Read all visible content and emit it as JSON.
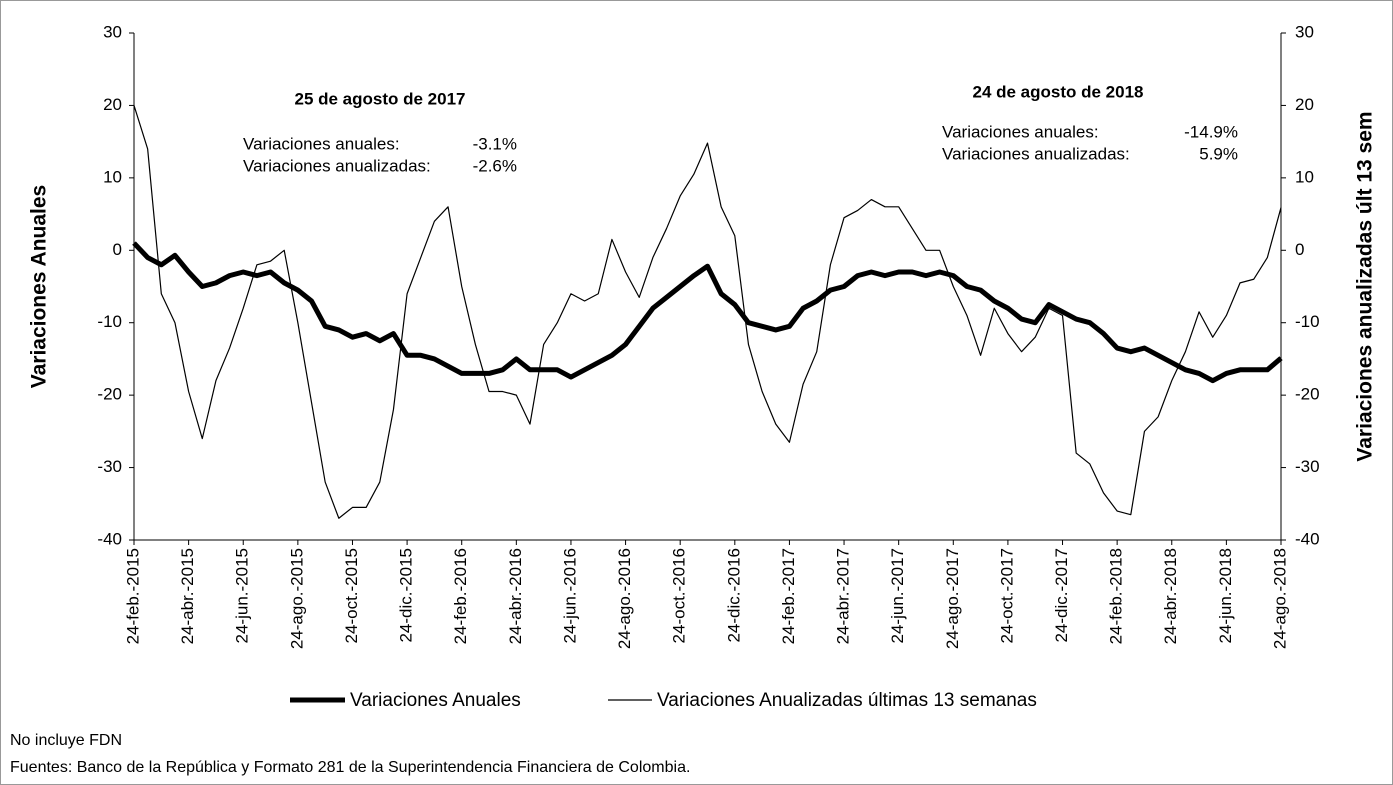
{
  "chart_data": {
    "type": "line",
    "categories": [
      "24-feb.-2015",
      null,
      null,
      null,
      "24-abr.-2015",
      null,
      null,
      null,
      "24-jun.-2015",
      null,
      null,
      null,
      "24-ago.-2015",
      null,
      null,
      null,
      "24-oct.-2015",
      null,
      null,
      null,
      "24-dic.-2015",
      null,
      null,
      null,
      "24-feb.-2016",
      null,
      null,
      null,
      "24-abr.-2016",
      null,
      null,
      null,
      "24-jun.-2016",
      null,
      null,
      null,
      "24-ago.-2016",
      null,
      null,
      null,
      "24-oct.-2016",
      null,
      null,
      null,
      "24-dic.-2016",
      null,
      null,
      null,
      "24-feb.-2017",
      null,
      null,
      null,
      "24-abr.-2017",
      null,
      null,
      null,
      "24-jun.-2017",
      null,
      null,
      null,
      "24-ago.-2017",
      null,
      null,
      null,
      "24-oct.-2017",
      null,
      null,
      null,
      "24-dic.-2017",
      null,
      null,
      null,
      "24-feb.-2018",
      null,
      null,
      null,
      "24-abr.-2018",
      null,
      null,
      null,
      "24-jun.-2018",
      null,
      null,
      null,
      "24-ago.-2018"
    ],
    "series": [
      {
        "name": "Variaciones Anuales",
        "color": "#000000",
        "axis": "y",
        "values": [
          1,
          -1,
          -2,
          -0.7,
          -3,
          -5,
          -4.5,
          -3.5,
          -3,
          -3.5,
          -3,
          -4.5,
          -5.5,
          -7,
          -10.5,
          -11,
          -12,
          -11.5,
          -12.5,
          -11.5,
          -14.5,
          -14.5,
          -15,
          -16,
          -17,
          -17,
          -17,
          -16.5,
          -15,
          -16.5,
          -16.5,
          -16.5,
          -17.5,
          -16.5,
          -15.5,
          -14.5,
          -13,
          -10.5,
          -8,
          -6.5,
          -5,
          -3.5,
          -2.2,
          -6,
          -7.5,
          -10,
          -10.5,
          -11,
          -10.5,
          -8,
          -7,
          -5.5,
          -5,
          -3.5,
          -3,
          -3.5,
          -3,
          -3,
          -3.5,
          -3,
          -3.5,
          -5,
          -5.5,
          -7,
          -8,
          -9.5,
          -10,
          -7.5,
          -8.5,
          -9.5,
          -10,
          -11.5,
          -13.5,
          -14,
          -13.5,
          -14.5,
          -15.5,
          -16.5,
          -17,
          -18,
          -17,
          -16.5,
          -16.5,
          -16.5,
          -14.9
        ]
      },
      {
        "name": "Variaciones Anualizadas últimas 13 semanas",
        "color": "#000000",
        "axis": "y2",
        "values": [
          20,
          14,
          -6,
          -10,
          -19.5,
          -26,
          -18,
          -13.5,
          -8,
          -2,
          -1.5,
          0,
          -10,
          -21,
          -32,
          -37,
          -35.5,
          -35.5,
          -32,
          -22,
          -6,
          -1,
          4,
          6,
          -5,
          -13,
          -19.5,
          -19.5,
          -20,
          -24,
          -13,
          -10,
          -6,
          -7,
          -6,
          1.5,
          -3,
          -6.5,
          -1,
          3,
          7.5,
          10.5,
          14.8,
          6,
          2,
          -13,
          -19.5,
          -24,
          -26.5,
          -18.5,
          -14,
          -2,
          4.5,
          5.5,
          7,
          6,
          6,
          3,
          0,
          0,
          -5,
          -9,
          -14.5,
          -8,
          -11.5,
          -14,
          -12,
          -8,
          -9,
          -28,
          -29.5,
          -33.5,
          -36,
          -36.5,
          -25,
          -23,
          -18,
          -14,
          -8.5,
          -12,
          -9,
          -4.5,
          -4,
          -1,
          5.9
        ]
      }
    ],
    "ylabel": "Variaciones Anuales",
    "y2label": "Variaciones anualizadas últ 13 sem",
    "ylim": [
      -40,
      30
    ],
    "yticks": [
      -40,
      -30,
      -20,
      -10,
      0,
      10,
      20,
      30
    ],
    "y2lim": [
      -40,
      30
    ],
    "y2ticks": [
      -40,
      -30,
      -20,
      -10,
      0,
      10,
      20,
      30
    ],
    "annotations": [
      {
        "title": "25 de agosto de 2017",
        "lines": [
          [
            "Variaciones anuales:",
            "-3.1%"
          ],
          [
            "Variaciones anualizadas:",
            "-2.6%"
          ]
        ]
      },
      {
        "title": "24 de agosto de 2018",
        "lines": [
          [
            "Variaciones anuales:",
            "-14.9%"
          ],
          [
            "Variaciones anualizadas:",
            "5.9%"
          ]
        ]
      }
    ],
    "footnotes": [
      "No incluye FDN",
      "Fuentes: Banco de la República y Formato 281 de la Superintendencia Financiera de Colombia."
    ]
  }
}
